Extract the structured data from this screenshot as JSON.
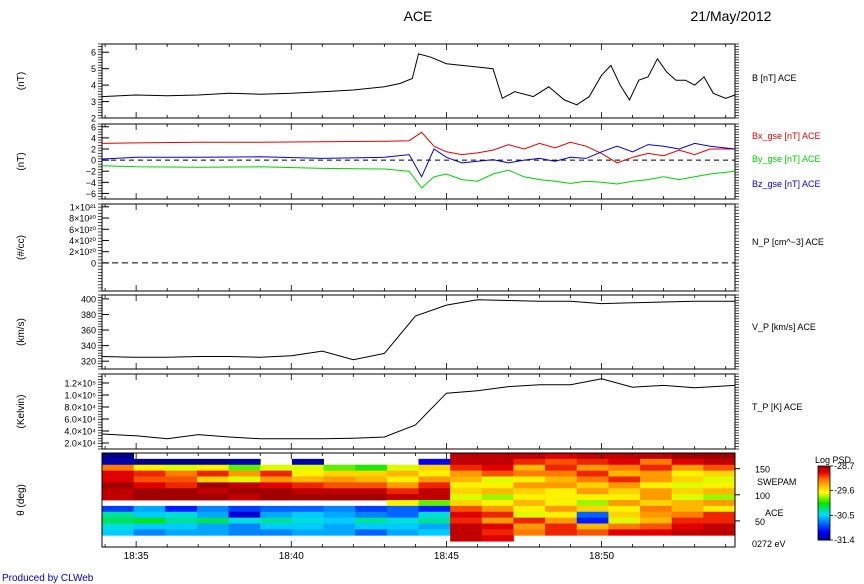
{
  "header": {
    "title": "ACE",
    "date": "21/May/2012"
  },
  "footer": {
    "credit": "Produced by CLWeb"
  },
  "x_axis": {
    "tick_labels": [
      "18:35",
      "18:40",
      "18:45",
      "18:50"
    ],
    "tick_minutes": [
      35,
      40,
      45,
      50
    ],
    "xlim_minutes": [
      33.9,
      54.3
    ]
  },
  "chart_data": [
    {
      "type": "line",
      "ylabel": "(nT)",
      "ylim": [
        2,
        6.5
      ],
      "yticks": [
        2,
        3,
        4,
        5,
        6
      ],
      "ytick_labels": [
        "2",
        "3",
        "4",
        "5",
        "6"
      ],
      "series": [
        {
          "name": "B [nT] ACE",
          "color": "#000000",
          "x": [
            33.9,
            35,
            36,
            37,
            38,
            39,
            40,
            41,
            42,
            43,
            43.5,
            43.9,
            44.1,
            44.5,
            45,
            45.5,
            46,
            46.5,
            46.8,
            47.2,
            47.8,
            48.3,
            48.8,
            49.2,
            49.6,
            50,
            50.3,
            50.6,
            50.9,
            51.2,
            51.5,
            51.8,
            52.1,
            52.4,
            52.7,
            53,
            53.3,
            53.6,
            54,
            54.3
          ],
          "y": [
            3.3,
            3.4,
            3.35,
            3.4,
            3.5,
            3.45,
            3.5,
            3.6,
            3.7,
            3.9,
            4.1,
            4.4,
            5.9,
            5.7,
            5.3,
            5.2,
            5.1,
            5.0,
            3.2,
            3.6,
            3.3,
            3.9,
            3.1,
            2.8,
            3.3,
            4.6,
            5.2,
            4.0,
            3.1,
            4.3,
            4.5,
            5.6,
            4.8,
            4.3,
            4.3,
            4.0,
            4.5,
            3.5,
            3.2,
            3.4
          ]
        }
      ]
    },
    {
      "type": "line",
      "ylabel": "(nT)",
      "ylim": [
        -7,
        6.5
      ],
      "yticks": [
        -6,
        -4,
        -2,
        0,
        2,
        4,
        6
      ],
      "ytick_labels": [
        "−6",
        "−4",
        "−2",
        "0",
        "2",
        "4",
        "6"
      ],
      "series": [
        {
          "name": "Bx_gse [nT] ACE",
          "color": "#e60000",
          "x": [
            33.9,
            35,
            37,
            39,
            41,
            43,
            43.8,
            44.2,
            44.6,
            45,
            45.5,
            46,
            46.5,
            47,
            47.5,
            48,
            48.5,
            49,
            49.5,
            50,
            50.5,
            51,
            51.5,
            52,
            52.5,
            53,
            53.5,
            54.3
          ],
          "y": [
            3,
            3.1,
            3.2,
            3.2,
            3.3,
            3.4,
            3.5,
            5.0,
            2.5,
            1.5,
            1.0,
            1.3,
            1.8,
            2.8,
            2.0,
            3.0,
            2.2,
            3.2,
            2.5,
            1.2,
            -0.5,
            0.5,
            1.2,
            0.8,
            1.8,
            1.0,
            2.0,
            2.0
          ]
        },
        {
          "name": "By_gse [nT] ACE",
          "color": "#00d200",
          "x": [
            33.9,
            35,
            37,
            39,
            41,
            43,
            43.8,
            44.2,
            44.6,
            45,
            45.5,
            46,
            46.5,
            47,
            47.5,
            48,
            48.5,
            49,
            49.5,
            50,
            50.5,
            51,
            51.5,
            52,
            52.5,
            53,
            53.5,
            54.3
          ],
          "y": [
            -1.0,
            -1.2,
            -1.3,
            -1.2,
            -1.5,
            -1.6,
            -2.0,
            -5.0,
            -3.0,
            -2.5,
            -3.5,
            -3.8,
            -2.5,
            -1.8,
            -3.0,
            -3.5,
            -3.8,
            -4.2,
            -3.8,
            -4.0,
            -4.3,
            -3.8,
            -3.5,
            -3.0,
            -3.5,
            -3.0,
            -2.5,
            -2.0
          ]
        },
        {
          "name": "Bz_gse [nT] ACE",
          "color": "#0000e6",
          "x": [
            33.9,
            35,
            37,
            39,
            41,
            43,
            43.8,
            44.2,
            44.6,
            45,
            45.5,
            46,
            46.5,
            47,
            47.5,
            48,
            48.5,
            49,
            49.5,
            50,
            50.5,
            51,
            51.5,
            52,
            52.5,
            53,
            53.5,
            54.3
          ],
          "y": [
            0.2,
            0.5,
            0.5,
            0.6,
            0.3,
            0.5,
            1.0,
            -3.0,
            2.0,
            0.5,
            -0.5,
            -0.2,
            0.1,
            -0.5,
            0.0,
            0.3,
            -0.2,
            0.5,
            0.3,
            1.5,
            2.5,
            1.5,
            2.8,
            2.5,
            2.0,
            3.0,
            2.5,
            2.0
          ]
        }
      ],
      "reference_line": {
        "y": 0,
        "style": "dashed"
      }
    },
    {
      "type": "line",
      "ylabel": "(#/cc)",
      "ylim": [
        -5e+20,
        1.05e+21
      ],
      "yticks": [
        0,
        2e+20,
        4e+20,
        6e+20,
        8e+20,
        1e+21
      ],
      "ytick_labels": [
        "0",
        "2×10²⁰",
        "4×10²⁰",
        "6×10²⁰",
        "8×10²⁰",
        "1×10²¹"
      ],
      "series": [
        {
          "name": "N_P [cm^−3] ACE",
          "label_text": "N_P [cm^−3] ACE",
          "color": "#000000",
          "style": "dashed",
          "x": [
            33.9,
            54.3
          ],
          "y": [
            0,
            0
          ]
        }
      ]
    },
    {
      "type": "line",
      "ylabel": "(km/s)",
      "ylim": [
        310,
        405
      ],
      "yticks": [
        320,
        340,
        360,
        380,
        400
      ],
      "ytick_labels": [
        "320",
        "340",
        "360",
        "380",
        "400"
      ],
      "series": [
        {
          "name": "V_P [km/s] ACE",
          "color": "#000000",
          "x": [
            33.9,
            35,
            36,
            37,
            38,
            39,
            40,
            41,
            42,
            43,
            44,
            45,
            46,
            47,
            48,
            49,
            50,
            51,
            52,
            53,
            54.3
          ],
          "y": [
            326,
            325,
            325,
            326,
            326,
            325,
            327,
            333,
            322,
            330,
            378,
            392,
            399,
            398,
            397,
            397,
            394,
            395,
            396,
            397,
            397
          ]
        }
      ]
    },
    {
      "type": "line",
      "ylabel": "(Kelvin)",
      "ylim": [
        10000,
        135000
      ],
      "yticks": [
        20000,
        40000,
        60000,
        80000,
        100000,
        120000
      ],
      "ytick_labels": [
        "2.0×10⁴",
        "4.0×10⁴",
        "6.0×10⁴",
        "8.0×10⁴",
        "1.0×10⁵",
        "1.2×10⁵"
      ],
      "series": [
        {
          "name": "T_P [K] ACE",
          "color": "#000000",
          "x": [
            33.9,
            35,
            36,
            37,
            38,
            39,
            40,
            41,
            42,
            43,
            44,
            45,
            46,
            47,
            48,
            49,
            50,
            51,
            52,
            53,
            54.3
          ],
          "y": [
            35000,
            32000,
            27000,
            34000,
            30000,
            27000,
            27000,
            27000,
            28000,
            30000,
            50000,
            103000,
            107000,
            114000,
            117000,
            117000,
            127000,
            113000,
            116000,
            112000,
            116000
          ]
        }
      ]
    },
    {
      "type": "heatmap",
      "ylabel": "θ (deg)",
      "ylim": [
        0,
        180
      ],
      "right_labels": [
        "150",
        "100",
        "50"
      ],
      "right_label_values": [
        150,
        100,
        50
      ],
      "instrument_labels": [
        "SWEPAM",
        "ACE",
        "0272 eV"
      ],
      "colorbar": {
        "title": "Log PSD",
        "tick_labels": [
          "-28.7",
          "-29.6",
          "-30.5",
          "-31.4"
        ],
        "tick_values": [
          -28.7,
          -29.6,
          -30.5,
          -31.4
        ],
        "vmin": -31.4,
        "vmax": -28.7
      },
      "time_columns": [
        34,
        35,
        36,
        37,
        38,
        39,
        40,
        41,
        42,
        43,
        44,
        45,
        46,
        47,
        48,
        49,
        50,
        51,
        52,
        53
      ],
      "theta_rows": [
        170,
        160,
        150,
        140,
        130,
        120,
        110,
        100,
        90,
        80,
        70,
        60,
        50,
        40,
        30,
        20
      ],
      "values": [
        [
          -31.4,
          null,
          null,
          null,
          null,
          null,
          null,
          null,
          null,
          null,
          null,
          -28.8,
          -28.8,
          -28.8,
          -28.9,
          -28.8,
          -28.8,
          -28.8,
          -28.7,
          -28.7
        ],
        [
          -31.3,
          -31.4,
          -31.4,
          -31.4,
          -31.3,
          null,
          -31.3,
          null,
          null,
          null,
          -31.1,
          -28.8,
          -28.8,
          -29.0,
          -29.1,
          -29.0,
          -28.9,
          -29.2,
          -28.9,
          -28.8
        ],
        [
          -29.2,
          -29.6,
          -29.7,
          -29.6,
          -29.9,
          -29.7,
          -29.7,
          -29.9,
          -30.0,
          -29.7,
          -29.5,
          -29.0,
          -28.9,
          -29.4,
          -29.0,
          -29.3,
          -29.2,
          -29.0,
          -29.3,
          -29.1
        ],
        [
          -28.9,
          -29.0,
          -29.2,
          -29.0,
          -29.3,
          -29.0,
          -29.6,
          -29.5,
          -29.5,
          -29.4,
          -29.6,
          -29.3,
          -29.1,
          -29.2,
          -29.2,
          -29.0,
          -29.4,
          -29.3,
          -29.6,
          -29.5
        ],
        [
          -28.9,
          -29.1,
          -29.1,
          -29.5,
          -29.7,
          -29.3,
          -29.4,
          -29.3,
          -29.4,
          -29.6,
          -29.3,
          -29.4,
          -29.7,
          -29.6,
          -29.4,
          -29.2,
          -29.0,
          -29.3,
          -29.5,
          -29.7
        ],
        [
          -28.7,
          -28.9,
          -29.0,
          -28.7,
          -28.8,
          -28.9,
          -29.0,
          -29.1,
          -29.1,
          -29.3,
          -29.0,
          -29.6,
          -29.6,
          -29.3,
          -29.3,
          -29.5,
          -29.3,
          -29.6,
          -29.7,
          -29.6
        ],
        [
          -28.8,
          -28.7,
          -28.7,
          -28.8,
          -28.7,
          -28.7,
          -28.8,
          -28.8,
          -28.8,
          -29.0,
          -28.8,
          -29.5,
          -29.4,
          -29.5,
          -29.6,
          -29.3,
          -29.5,
          -29.3,
          -29.5,
          -29.4
        ],
        [
          -28.8,
          -28.7,
          -28.7,
          -28.7,
          -28.8,
          -28.7,
          -28.7,
          -28.7,
          -28.7,
          -28.8,
          -28.8,
          -29.7,
          -29.8,
          -29.6,
          -29.6,
          -29.6,
          -29.6,
          -29.3,
          -29.7,
          -29.8
        ],
        [
          null,
          null,
          null,
          null,
          null,
          null,
          null,
          null,
          null,
          -29.6,
          -29.9,
          -29.5,
          -29.6,
          -29.4,
          -29.6,
          -29.8,
          -29.3,
          -29.5,
          -29.4,
          -29.3
        ],
        [
          -30.9,
          -30.6,
          -31.0,
          -30.7,
          -30.9,
          -30.8,
          -30.8,
          -30.7,
          -30.9,
          -30.8,
          -31.0,
          -29.1,
          -29.3,
          -29.6,
          -29.3,
          -29.5,
          -29.6,
          -29.2,
          -29.4,
          -29.6
        ],
        [
          -30.3,
          -30.5,
          -30.4,
          -30.6,
          -31.2,
          -30.6,
          -30.5,
          -30.6,
          -30.7,
          -30.8,
          -30.4,
          -28.9,
          -29.0,
          -29.7,
          -29.6,
          -30.8,
          -29.5,
          -29.3,
          -29.2,
          -29.0
        ],
        [
          -30.2,
          -30.1,
          -30.3,
          -30.2,
          -30.4,
          -30.3,
          -30.4,
          -30.5,
          -30.3,
          -30.4,
          -30.3,
          -29.0,
          -29.3,
          -29.0,
          -29.3,
          -31.0,
          -29.7,
          -29.4,
          -29.0,
          -29.0
        ],
        [
          -30.4,
          -30.5,
          -30.5,
          -30.6,
          -30.7,
          -30.5,
          -30.5,
          -30.6,
          -30.5,
          -30.5,
          -30.6,
          -28.8,
          -28.9,
          -29.3,
          -29.0,
          -29.4,
          -29.2,
          -29.1,
          -28.9,
          -28.8
        ],
        [
          -30.5,
          -30.7,
          -30.6,
          -30.6,
          -30.7,
          -30.7,
          -30.6,
          -30.6,
          -30.8,
          -30.6,
          -30.5,
          -28.8,
          -29.0,
          -29.2,
          -29.0,
          -29.1,
          -28.9,
          -28.9,
          -28.8,
          -28.8
        ],
        [
          null,
          null,
          null,
          null,
          null,
          null,
          null,
          null,
          null,
          null,
          null,
          -28.8,
          -28.9,
          null,
          null,
          null,
          null,
          null,
          null,
          null
        ],
        [
          null,
          null,
          null,
          null,
          null,
          null,
          null,
          null,
          null,
          null,
          null,
          null,
          null,
          null,
          null,
          null,
          null,
          null,
          null,
          null
        ]
      ]
    }
  ]
}
